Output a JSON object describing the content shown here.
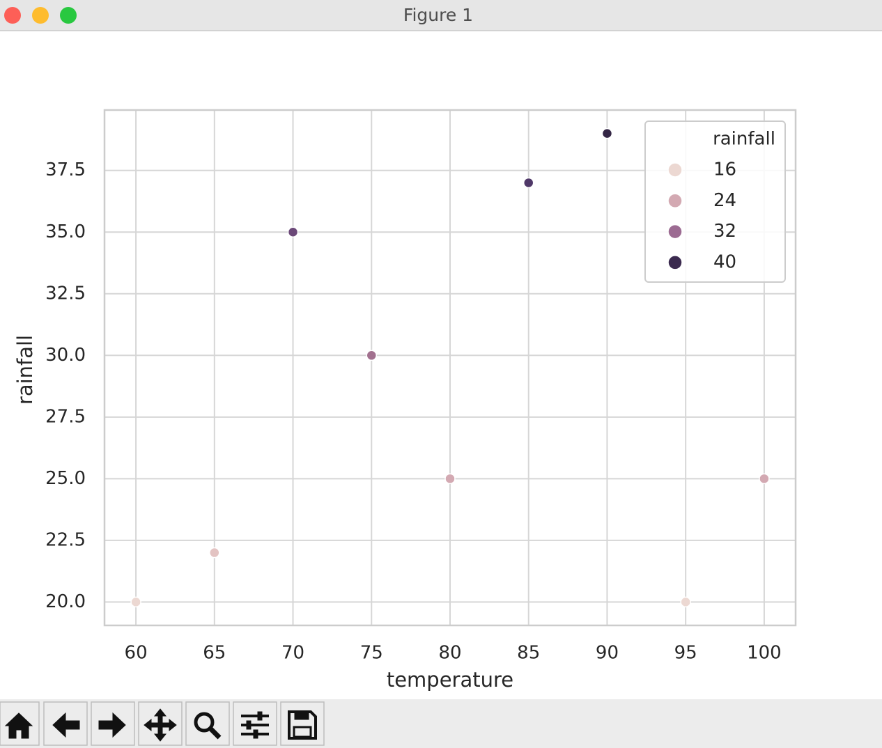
{
  "window": {
    "title": "Figure 1"
  },
  "chart_data": {
    "type": "scatter",
    "x_label": "temperature",
    "y_label": "rainfall",
    "x": [
      60,
      65,
      70,
      75,
      80,
      85,
      90,
      95,
      100
    ],
    "values": [
      20,
      22,
      35,
      30,
      25,
      37,
      39,
      20,
      25
    ],
    "point_colors": [
      "#ecd8d2",
      "#e3c3c2",
      "#6b4878",
      "#a2718f",
      "#d3a9b2",
      "#4f3868",
      "#342645",
      "#ecd8d2",
      "#d3a9b2"
    ],
    "xlim": [
      58,
      102
    ],
    "ylim": [
      19.05,
      39.95
    ],
    "xticks": [
      60,
      65,
      70,
      75,
      80,
      85,
      90,
      95,
      100
    ],
    "yticks": [
      {
        "value": 20,
        "label": "20.0"
      },
      {
        "value": 22.5,
        "label": "22.5"
      },
      {
        "value": 25,
        "label": "25.0"
      },
      {
        "value": 27.5,
        "label": "27.5"
      },
      {
        "value": 30,
        "label": "30.0"
      },
      {
        "value": 32.5,
        "label": "32.5"
      },
      {
        "value": 35,
        "label": "35.0"
      },
      {
        "value": 37.5,
        "label": "37.5"
      }
    ],
    "grid": true,
    "legend": {
      "title": "rainfall",
      "position": "upper right",
      "entries": [
        {
          "label": 16,
          "color": "#ecd8d2"
        },
        {
          "label": 24,
          "color": "#d3a9b2"
        },
        {
          "label": 32,
          "color": "#9c6b92"
        },
        {
          "label": 40,
          "color": "#3b2a4f"
        }
      ]
    }
  }
}
